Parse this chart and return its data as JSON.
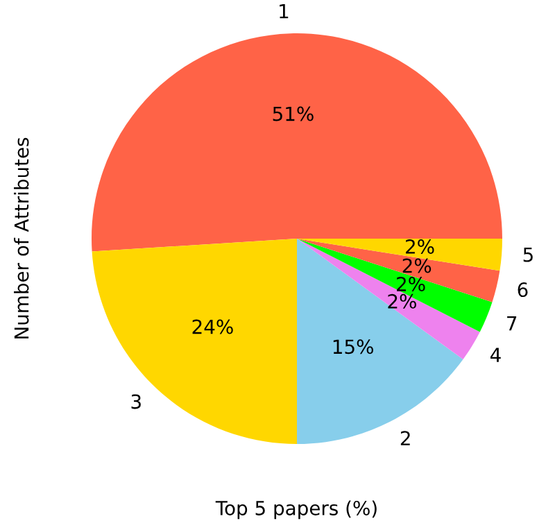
{
  "chart_data": {
    "type": "pie",
    "xlabel": "Top 5 papers (%)",
    "ylabel": "Number of Attributes",
    "categories": [
      "1",
      "3",
      "2",
      "4",
      "7",
      "6",
      "5"
    ],
    "values": [
      51,
      24,
      15,
      2.5,
      2.5,
      2.5,
      2.5
    ],
    "value_labels": [
      "51%",
      "24%",
      "15%",
      "2%",
      "2%",
      "2%",
      "2%"
    ],
    "colors": [
      "#ff6347",
      "#ffd700",
      "#87ceeb",
      "#ee82ee",
      "#00ff00",
      "#ff6347",
      "#ffd700"
    ]
  }
}
